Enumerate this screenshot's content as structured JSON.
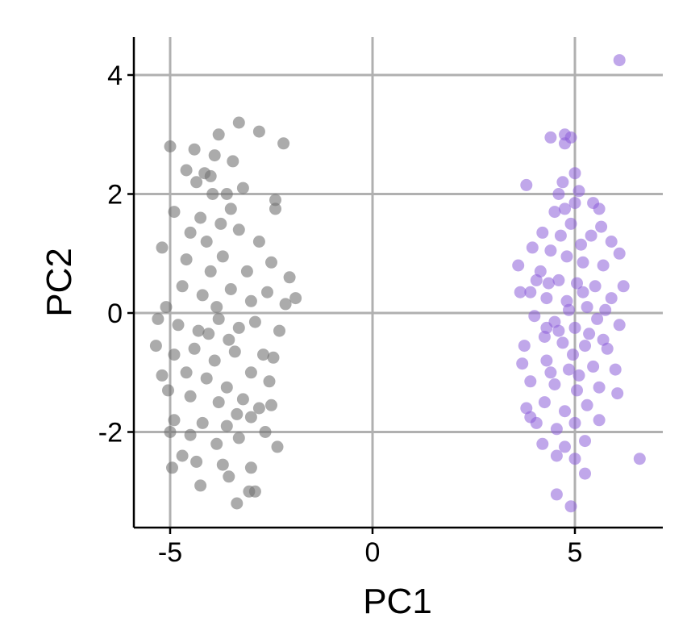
{
  "chart_data": {
    "type": "scatter",
    "title": "",
    "xlabel": "PC1",
    "ylabel": "PC2",
    "xlim": [
      -6,
      7.2
    ],
    "ylim": [
      -3.6,
      4.6
    ],
    "xticks": [
      {
        "value": -5,
        "label": "-5"
      },
      {
        "value": 0,
        "label": "0"
      },
      {
        "value": 5,
        "label": "5"
      }
    ],
    "yticks": [
      {
        "value": -2,
        "label": "-2"
      },
      {
        "value": 0,
        "label": "0"
      },
      {
        "value": 2,
        "label": "2"
      },
      {
        "value": 4,
        "label": "4"
      }
    ],
    "grid": true,
    "legend": "none",
    "series": [
      {
        "color": "#737373",
        "opacity": 0.6,
        "points": [
          [
            -3.3,
            3.2
          ],
          [
            -5,
            2.8
          ],
          [
            -4.4,
            2.75
          ],
          [
            -3.8,
            3.0
          ],
          [
            -2.8,
            3.05
          ],
          [
            -2.2,
            2.85
          ],
          [
            -4,
            2.3
          ],
          [
            -4.35,
            2.2
          ],
          [
            -3.5,
            1.75
          ],
          [
            -4.9,
            1.7
          ],
          [
            -4.5,
            1.35
          ],
          [
            -2.4,
            1.9
          ],
          [
            -3.6,
            2.0
          ],
          [
            -3.2,
            2.1
          ],
          [
            -4.1,
            1.2
          ],
          [
            -3.3,
            1.4
          ],
          [
            -2.8,
            1.2
          ],
          [
            -5.2,
            1.1
          ],
          [
            -4.6,
            0.9
          ],
          [
            -4.0,
            0.7
          ],
          [
            -3.7,
            0.95
          ],
          [
            -2.5,
            0.85
          ],
          [
            -2.05,
            0.6
          ],
          [
            -1.9,
            0.25
          ],
          [
            -4.7,
            0.45
          ],
          [
            -4.2,
            0.3
          ],
          [
            -3.5,
            0.4
          ],
          [
            -3.0,
            0.2
          ],
          [
            -2.6,
            0.35
          ],
          [
            -5.1,
            0.1
          ],
          [
            -5.3,
            -0.1
          ],
          [
            -4.8,
            -0.2
          ],
          [
            -4.3,
            -0.3
          ],
          [
            -3.8,
            -0.1
          ],
          [
            -3.3,
            -0.25
          ],
          [
            -2.9,
            -0.15
          ],
          [
            -2.3,
            -0.3
          ],
          [
            -5.35,
            -0.55
          ],
          [
            -4.9,
            -0.7
          ],
          [
            -4.4,
            -0.6
          ],
          [
            -3.9,
            -0.8
          ],
          [
            -3.4,
            -0.65
          ],
          [
            -2.7,
            -0.7
          ],
          [
            -4.6,
            -1.0
          ],
          [
            -4.1,
            -1.1
          ],
          [
            -3.6,
            -1.25
          ],
          [
            -3.0,
            -1.0
          ],
          [
            -2.55,
            -1.15
          ],
          [
            -5.05,
            -1.3
          ],
          [
            -4.5,
            -1.4
          ],
          [
            -3.8,
            -1.5
          ],
          [
            -3.2,
            -1.45
          ],
          [
            -2.8,
            -1.6
          ],
          [
            -4.9,
            -1.8
          ],
          [
            -4.2,
            -1.85
          ],
          [
            -3.6,
            -1.9
          ],
          [
            -3.0,
            -1.75
          ],
          [
            -2.5,
            -1.55
          ],
          [
            -4.5,
            -2.05
          ],
          [
            -3.85,
            -2.2
          ],
          [
            -3.3,
            -2.1
          ],
          [
            -2.35,
            -2.25
          ],
          [
            -4.7,
            -2.4
          ],
          [
            -3.7,
            -2.55
          ],
          [
            -3.0,
            -2.6
          ],
          [
            -4.95,
            -2.6
          ],
          [
            -4.25,
            -2.9
          ],
          [
            -3.55,
            -2.75
          ],
          [
            -3.05,
            -3.0
          ],
          [
            -3.35,
            -3.2
          ],
          [
            -2.9,
            -3.0
          ],
          [
            -5.0,
            -2.0
          ],
          [
            -2.4,
            1.75
          ],
          [
            -3.45,
            2.55
          ],
          [
            -4.6,
            2.4
          ],
          [
            -3.75,
            1.5
          ],
          [
            -4.25,
            1.6
          ],
          [
            -3.95,
            2.0
          ],
          [
            -3.1,
            0.7
          ],
          [
            -3.85,
            0.1
          ],
          [
            -3.55,
            -0.45
          ],
          [
            -4.05,
            -0.35
          ],
          [
            -2.15,
            0.15
          ],
          [
            -2.45,
            -0.75
          ],
          [
            -3.35,
            -1.7
          ],
          [
            -4.35,
            -2.5
          ],
          [
            -5.2,
            -1.05
          ],
          [
            -2.65,
            -2.0
          ],
          [
            -3.9,
            2.65
          ],
          [
            -4.15,
            2.35
          ]
        ]
      },
      {
        "color": "#8c5fd8",
        "opacity": 0.55,
        "points": [
          [
            6.1,
            4.25
          ],
          [
            4.4,
            2.95
          ],
          [
            4.75,
            3.0
          ],
          [
            4.9,
            2.95
          ],
          [
            4.75,
            2.85
          ],
          [
            5.0,
            2.35
          ],
          [
            4.7,
            2.2
          ],
          [
            3.8,
            2.15
          ],
          [
            4.6,
            2.0
          ],
          [
            5.0,
            1.85
          ],
          [
            5.45,
            1.85
          ],
          [
            5.6,
            1.75
          ],
          [
            4.5,
            1.7
          ],
          [
            4.2,
            1.35
          ],
          [
            4.9,
            1.5
          ],
          [
            5.4,
            1.3
          ],
          [
            5.9,
            1.2
          ],
          [
            3.95,
            1.1
          ],
          [
            4.4,
            1.05
          ],
          [
            4.8,
            0.95
          ],
          [
            5.2,
            0.85
          ],
          [
            5.7,
            0.8
          ],
          [
            6.1,
            1.0
          ],
          [
            3.6,
            0.8
          ],
          [
            4.15,
            0.7
          ],
          [
            4.6,
            0.55
          ],
          [
            5.05,
            0.5
          ],
          [
            5.5,
            0.45
          ],
          [
            6.2,
            0.45
          ],
          [
            3.9,
            0.35
          ],
          [
            4.3,
            0.25
          ],
          [
            4.8,
            0.2
          ],
          [
            5.3,
            0.1
          ],
          [
            5.9,
            0.25
          ],
          [
            3.65,
            0.35
          ],
          [
            4.0,
            -0.05
          ],
          [
            4.5,
            -0.15
          ],
          [
            5.0,
            -0.25
          ],
          [
            5.55,
            -0.1
          ],
          [
            6.1,
            -0.2
          ],
          [
            4.25,
            -0.4
          ],
          [
            4.7,
            -0.5
          ],
          [
            5.25,
            -0.55
          ],
          [
            5.7,
            -0.45
          ],
          [
            3.75,
            -0.55
          ],
          [
            3.7,
            -0.85
          ],
          [
            4.3,
            -0.8
          ],
          [
            4.85,
            -0.95
          ],
          [
            5.45,
            -0.9
          ],
          [
            6.0,
            -0.95
          ],
          [
            3.9,
            -1.15
          ],
          [
            4.5,
            -1.2
          ],
          [
            5.05,
            -1.3
          ],
          [
            5.6,
            -1.25
          ],
          [
            6.05,
            -1.35
          ],
          [
            3.8,
            -1.6
          ],
          [
            4.25,
            -1.5
          ],
          [
            4.75,
            -1.65
          ],
          [
            5.3,
            -1.55
          ],
          [
            4.05,
            -1.85
          ],
          [
            4.55,
            -1.95
          ],
          [
            5.0,
            -1.85
          ],
          [
            5.6,
            -1.8
          ],
          [
            4.2,
            -2.2
          ],
          [
            4.75,
            -2.25
          ],
          [
            5.25,
            -2.15
          ],
          [
            4.55,
            -2.4
          ],
          [
            5.0,
            -2.45
          ],
          [
            5.25,
            -2.7
          ],
          [
            4.55,
            -3.05
          ],
          [
            4.9,
            -3.25
          ],
          [
            6.6,
            -2.45
          ],
          [
            3.9,
            -1.75
          ],
          [
            4.65,
            1.3
          ],
          [
            5.15,
            1.15
          ],
          [
            4.35,
            0.5
          ],
          [
            5.75,
            0.05
          ],
          [
            4.6,
            -0.3
          ],
          [
            5.35,
            -0.35
          ],
          [
            4.95,
            -0.7
          ],
          [
            4.05,
            0.55
          ],
          [
            5.8,
            -0.6
          ],
          [
            4.4,
            -1.0
          ],
          [
            5.2,
            0.35
          ],
          [
            4.85,
            0.05
          ],
          [
            5.1,
            -1.05
          ],
          [
            4.3,
            -0.25
          ],
          [
            5.65,
            1.45
          ],
          [
            4.75,
            1.75
          ],
          [
            5.1,
            2.05
          ]
        ]
      }
    ]
  }
}
